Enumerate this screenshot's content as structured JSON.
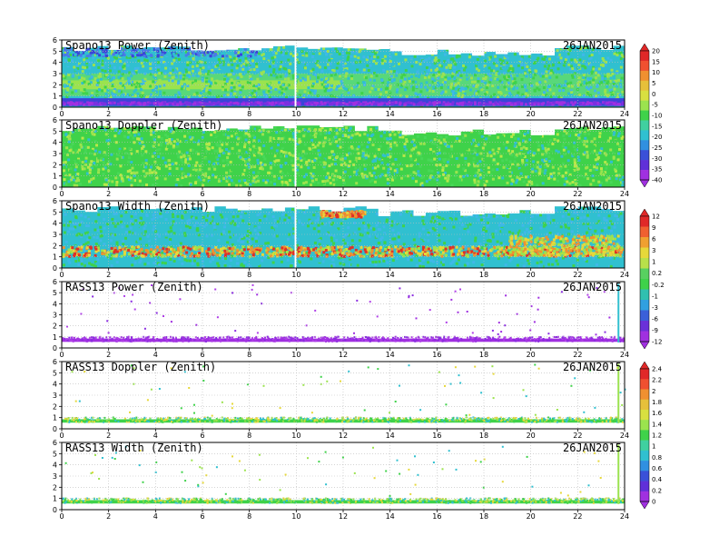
{
  "chart_data": [
    {
      "type": "heatmap",
      "title": "Spano13 Power (Zenith)",
      "date": "26JAN2015",
      "x_ticks": [
        "0",
        "2",
        "4",
        "6",
        "8",
        "10",
        "12",
        "14",
        "16",
        "18",
        "20",
        "22",
        "24"
      ],
      "y_ticks": [
        "0",
        "1",
        "2",
        "3",
        "4",
        "5",
        "6"
      ],
      "xlim": [
        0,
        24
      ],
      "ylim": [
        0,
        6
      ],
      "colorbar": {
        "labels": [
          "20",
          "15",
          "10",
          "5",
          "0",
          "-5",
          "-10",
          "-15",
          "-20",
          "-25",
          "-30",
          "-35",
          "-40"
        ]
      }
    },
    {
      "type": "heatmap",
      "title": "Spano13 Doppler (Zenith)",
      "date": "26JAN2015",
      "x_ticks": [
        "0",
        "2",
        "4",
        "6",
        "8",
        "10",
        "12",
        "14",
        "16",
        "18",
        "20",
        "22",
        "24"
      ],
      "y_ticks": [
        "0",
        "1",
        "2",
        "3",
        "4",
        "5",
        "6"
      ],
      "xlim": [
        0,
        24
      ],
      "ylim": [
        0,
        6
      ]
    },
    {
      "type": "heatmap",
      "title": "Spano13 Width (Zenith)",
      "date": "26JAN2015",
      "x_ticks": [
        "0",
        "2",
        "4",
        "6",
        "8",
        "10",
        "12",
        "14",
        "16",
        "18",
        "20",
        "22",
        "24"
      ],
      "y_ticks": [
        "0",
        "1",
        "2",
        "3",
        "4",
        "5",
        "6"
      ],
      "xlim": [
        0,
        24
      ],
      "ylim": [
        0,
        6
      ],
      "colorbar": {
        "labels": [
          "12",
          "9",
          "6",
          "3",
          "1",
          "0.2",
          "-0.2",
          "-1",
          "-3",
          "-6",
          "-9",
          "-12"
        ]
      }
    },
    {
      "type": "heatmap",
      "title": "RASS13 Power (Zenith)",
      "date": "26JAN2015",
      "x_ticks": [
        "0",
        "2",
        "4",
        "6",
        "8",
        "10",
        "12",
        "14",
        "16",
        "18",
        "20",
        "22",
        "24"
      ],
      "y_ticks": [
        "0",
        "1",
        "2",
        "3",
        "4",
        "5",
        "6"
      ],
      "xlim": [
        0,
        24
      ],
      "ylim": [
        0,
        6
      ]
    },
    {
      "type": "heatmap",
      "title": "RASS13 Doppler (Zenith)",
      "date": "26JAN2015",
      "x_ticks": [
        "0",
        "2",
        "4",
        "6",
        "8",
        "10",
        "12",
        "14",
        "16",
        "18",
        "20",
        "22",
        "24"
      ],
      "y_ticks": [
        "0",
        "1",
        "2",
        "3",
        "4",
        "5",
        "6"
      ],
      "xlim": [
        0,
        24
      ],
      "ylim": [
        0,
        6
      ],
      "colorbar": {
        "labels": [
          "2.4",
          "2.2",
          "2",
          "1.8",
          "1.6",
          "1.4",
          "1.2",
          "1",
          "0.8",
          "0.6",
          "0.4",
          "0.2",
          "0"
        ]
      }
    },
    {
      "type": "heatmap",
      "title": "RASS13 Width (Zenith)",
      "date": "26JAN2015",
      "x_ticks": [
        "0",
        "2",
        "4",
        "6",
        "8",
        "10",
        "12",
        "14",
        "16",
        "18",
        "20",
        "22",
        "24"
      ],
      "y_ticks": [
        "0",
        "1",
        "2",
        "3",
        "4",
        "5",
        "6"
      ],
      "xlim": [
        0,
        24
      ],
      "ylim": [
        0,
        6
      ]
    }
  ],
  "colors": {
    "green": "#3fd24a",
    "light_green": "#9be34e",
    "cyan": "#30c0d0",
    "blue": "#3a44d8",
    "purple": "#a030e0",
    "yellow": "#e6d83a",
    "orange": "#f09030",
    "red": "#e03028",
    "grid": "#bbbbbb"
  }
}
